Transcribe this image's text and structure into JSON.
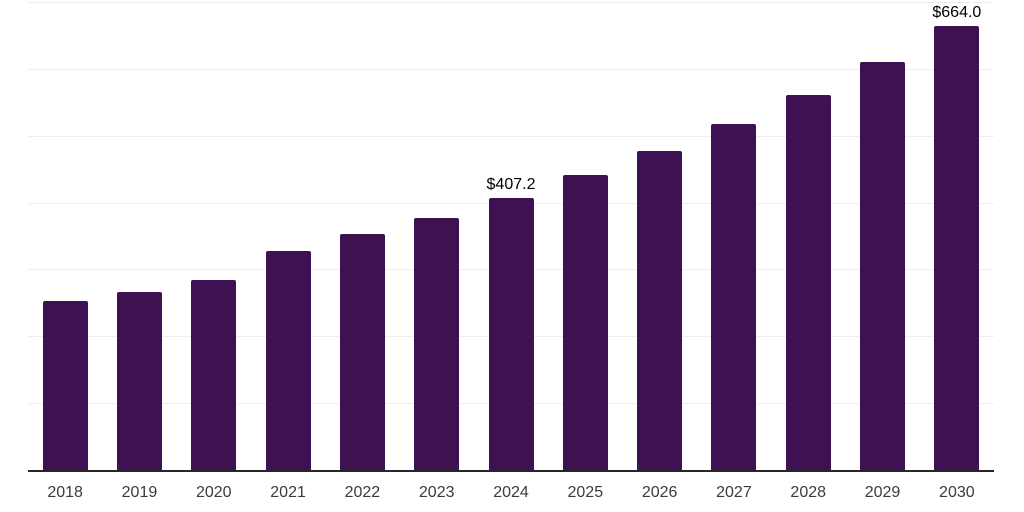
{
  "chart_data": {
    "type": "bar",
    "title": "",
    "xlabel": "",
    "ylabel": "",
    "categories": [
      "2018",
      "2019",
      "2020",
      "2021",
      "2022",
      "2023",
      "2024",
      "2025",
      "2026",
      "2027",
      "2028",
      "2029",
      "2030"
    ],
    "values": [
      252.8,
      266.7,
      284.2,
      327.5,
      352.5,
      377.3,
      407.2,
      441.2,
      477.5,
      517.5,
      561.0,
      610.7,
      664.0
    ],
    "data_labels": [
      null,
      null,
      null,
      null,
      null,
      null,
      "$407.2",
      null,
      null,
      null,
      null,
      null,
      "$664.0"
    ],
    "ylim": [
      0,
      700
    ],
    "gridline_values": [
      100,
      200,
      300,
      400,
      500,
      600,
      700
    ],
    "grid": "horizontal-only",
    "legend_position": "none",
    "y_axis_labels_visible": false,
    "colors": {
      "bar": "#3D1152",
      "gridline": "#EEEEF0",
      "axis_line": "#262626",
      "tick_label": "#3B3B3B",
      "data_label": "#000000",
      "background": "#FFFFFF"
    }
  }
}
